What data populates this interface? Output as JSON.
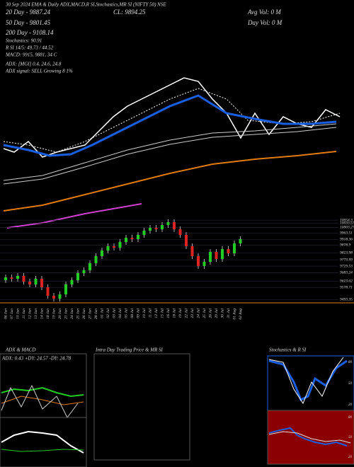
{
  "header": {
    "title": "30 Sep 2024 EMA & Daily ADX,MACD,R SI,Stochastics,MR SI (NIFTY 50) NSE",
    "ema20": "20 Day - 9887.24",
    "close": "CL: 9894.25",
    "avg_vol": "Avg Vol: 0 M",
    "day_vol": "Day Vol: 0 M",
    "ema50": "50 Day - 9801.45",
    "ema200": "200 Day - 9108.14",
    "stoch": "Stochastics: 90.91",
    "rsi": "R SI 14/5: 49.73 / 44.52",
    "macd": "MACD: 9915, 9881, 34 C",
    "adx": "ADX: [MGI] 0.4, 24.6, 24.8",
    "adx_signal": "ADX signal: SELL Growing 8 1%"
  },
  "chart_data": {
    "type": "candlestick",
    "categories": [
      "06 Jun",
      "07 Jun",
      "10 Jun",
      "11 Jun",
      "12 Jun",
      "13 Jun",
      "14 Jun",
      "18 Jun",
      "19 Jun",
      "20 Jun",
      "21 Jun",
      "24 Jun",
      "25 Jun",
      "26 Jun",
      "27 Jun",
      "28 Jun",
      "01 Jul",
      "02 Jul",
      "03 Jul",
      "04 Jul",
      "05 Jul",
      "08 Jul",
      "09 Jul",
      "10 Jul",
      "11 Jul",
      "12 Jul",
      "15 Jul",
      "16 Jul",
      "18 Jul",
      "19 Jul",
      "22 Jul",
      "23 Jul",
      "24 Jul",
      "25 Jul",
      "26 Jul",
      "29 Jul",
      "30 Jul",
      "31 Jul",
      "01 Aug",
      "02 Aug"
    ],
    "open": [
      9630,
      9650,
      9640,
      9660,
      9620,
      9600,
      9640,
      9580,
      9520,
      9500,
      9530,
      9600,
      9630,
      9680,
      9700,
      9750,
      9800,
      9840,
      9870,
      9860,
      9900,
      9930,
      9920,
      9950,
      9980,
      10000,
      9990,
      10020,
      10040,
      9990,
      9950,
      9870,
      9800,
      9730,
      9760,
      9830,
      9780,
      9850,
      9820,
      9890
    ],
    "close": [
      9650,
      9640,
      9660,
      9620,
      9600,
      9640,
      9580,
      9520,
      9500,
      9530,
      9600,
      9630,
      9680,
      9700,
      9750,
      9800,
      9840,
      9870,
      9860,
      9900,
      9930,
      9920,
      9950,
      9980,
      10000,
      9990,
      10020,
      10040,
      9990,
      9950,
      9870,
      9800,
      9730,
      9760,
      9830,
      9780,
      9850,
      9820,
      9890,
      9920
    ],
    "up_color": "#22cc22",
    "down_color": "#dd2222",
    "ylim": [
      9470,
      10070
    ],
    "yticks": [
      10054.3,
      10033.57,
      10003.27,
      9963.51,
      9918.36,
      9878.9,
      9823.98,
      9773.99,
      9729.53,
      9683.24,
      9623.62,
      9578.71,
      9493.35
    ]
  },
  "panels": {
    "adx_title": "ADX & MACD",
    "adx_values": "ADX: 0.43 +DY: 24.57 -DY: 24.78",
    "intraday_title": "Intra Day Trading Price & MR SI",
    "stoch_title": "Stochastics & R SI",
    "stoch_ticks": [
      "80",
      "50",
      "20"
    ],
    "rsi_ticks": [
      "80",
      "50",
      "20"
    ]
  }
}
